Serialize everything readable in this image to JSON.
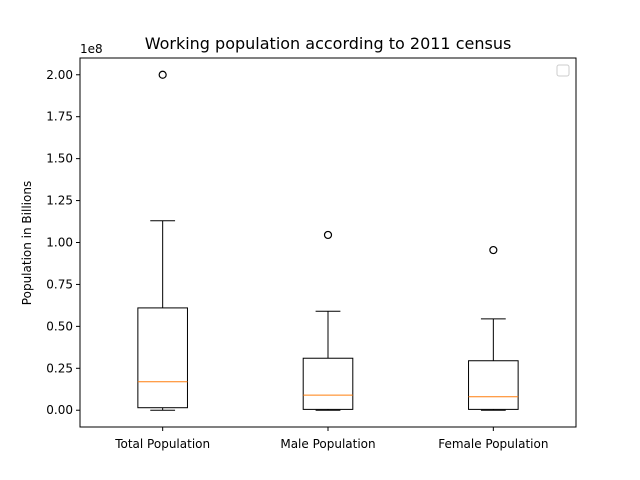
{
  "chart_data": {
    "type": "box",
    "title": "Working population according to 2011 census",
    "xlabel": "",
    "ylabel": "Population in Billions",
    "y_offset_label": "1e8",
    "y_scale_multiplier": 100000000,
    "ylim": [
      -0.1,
      2.1
    ],
    "yticks": [
      0.0,
      0.25,
      0.5,
      0.75,
      1.0,
      1.25,
      1.5,
      1.75,
      2.0
    ],
    "ytick_labels": [
      "0.00",
      "0.25",
      "0.50",
      "0.75",
      "1.00",
      "1.25",
      "1.50",
      "1.75",
      "2.00"
    ],
    "legend": {
      "placement": "top-right",
      "entries": []
    },
    "grid": false,
    "colors": {
      "box": "#000000",
      "median": "#ff7f0e"
    },
    "categories": [
      "Total Population",
      "Male Population",
      "Female Population"
    ],
    "boxes": [
      {
        "name": "Total Population",
        "whisker_low": 0.0,
        "q1": 0.015,
        "median": 0.17,
        "q3": 0.61,
        "whisker_high": 1.13,
        "outliers": [
          2.0
        ]
      },
      {
        "name": "Male Population",
        "whisker_low": 0.0,
        "q1": 0.005,
        "median": 0.09,
        "q3": 0.31,
        "whisker_high": 0.59,
        "outliers": [
          1.045
        ]
      },
      {
        "name": "Female Population",
        "whisker_low": 0.0,
        "q1": 0.005,
        "median": 0.08,
        "q3": 0.295,
        "whisker_high": 0.545,
        "outliers": [
          0.955
        ]
      }
    ]
  }
}
